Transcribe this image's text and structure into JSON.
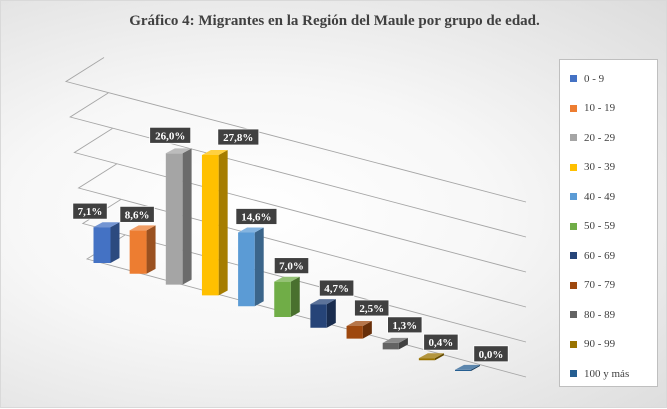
{
  "chart_data": {
    "type": "bar",
    "title": "Gráfico 4: Migrantes en la Región del Maule por grupo de edad.",
    "categories": [
      "0 - 9",
      "10 - 19",
      "20 - 29",
      "30 - 39",
      "40 - 49",
      "50 - 59",
      "60 - 69",
      "70 - 79",
      "80 - 89",
      "90 - 99",
      "100 y más"
    ],
    "values": [
      7.1,
      8.6,
      26.0,
      27.8,
      14.6,
      7.0,
      4.7,
      2.5,
      1.3,
      0.4,
      0.0
    ],
    "data_labels": [
      "7,1%",
      "8,6%",
      "26,0%",
      "27,8%",
      "14,6%",
      "7,0%",
      "4,7%",
      "2,5%",
      "1,3%",
      "0,4%",
      "0,0%"
    ],
    "unit": "%",
    "colors": [
      "#4472c4",
      "#ed7d31",
      "#a5a5a5",
      "#ffc000",
      "#5b9bd5",
      "#70ad47",
      "#264478",
      "#9e480e",
      "#636363",
      "#997300",
      "#255e91"
    ],
    "legend_position": "right",
    "grid": true,
    "style": "3d-perspective"
  }
}
